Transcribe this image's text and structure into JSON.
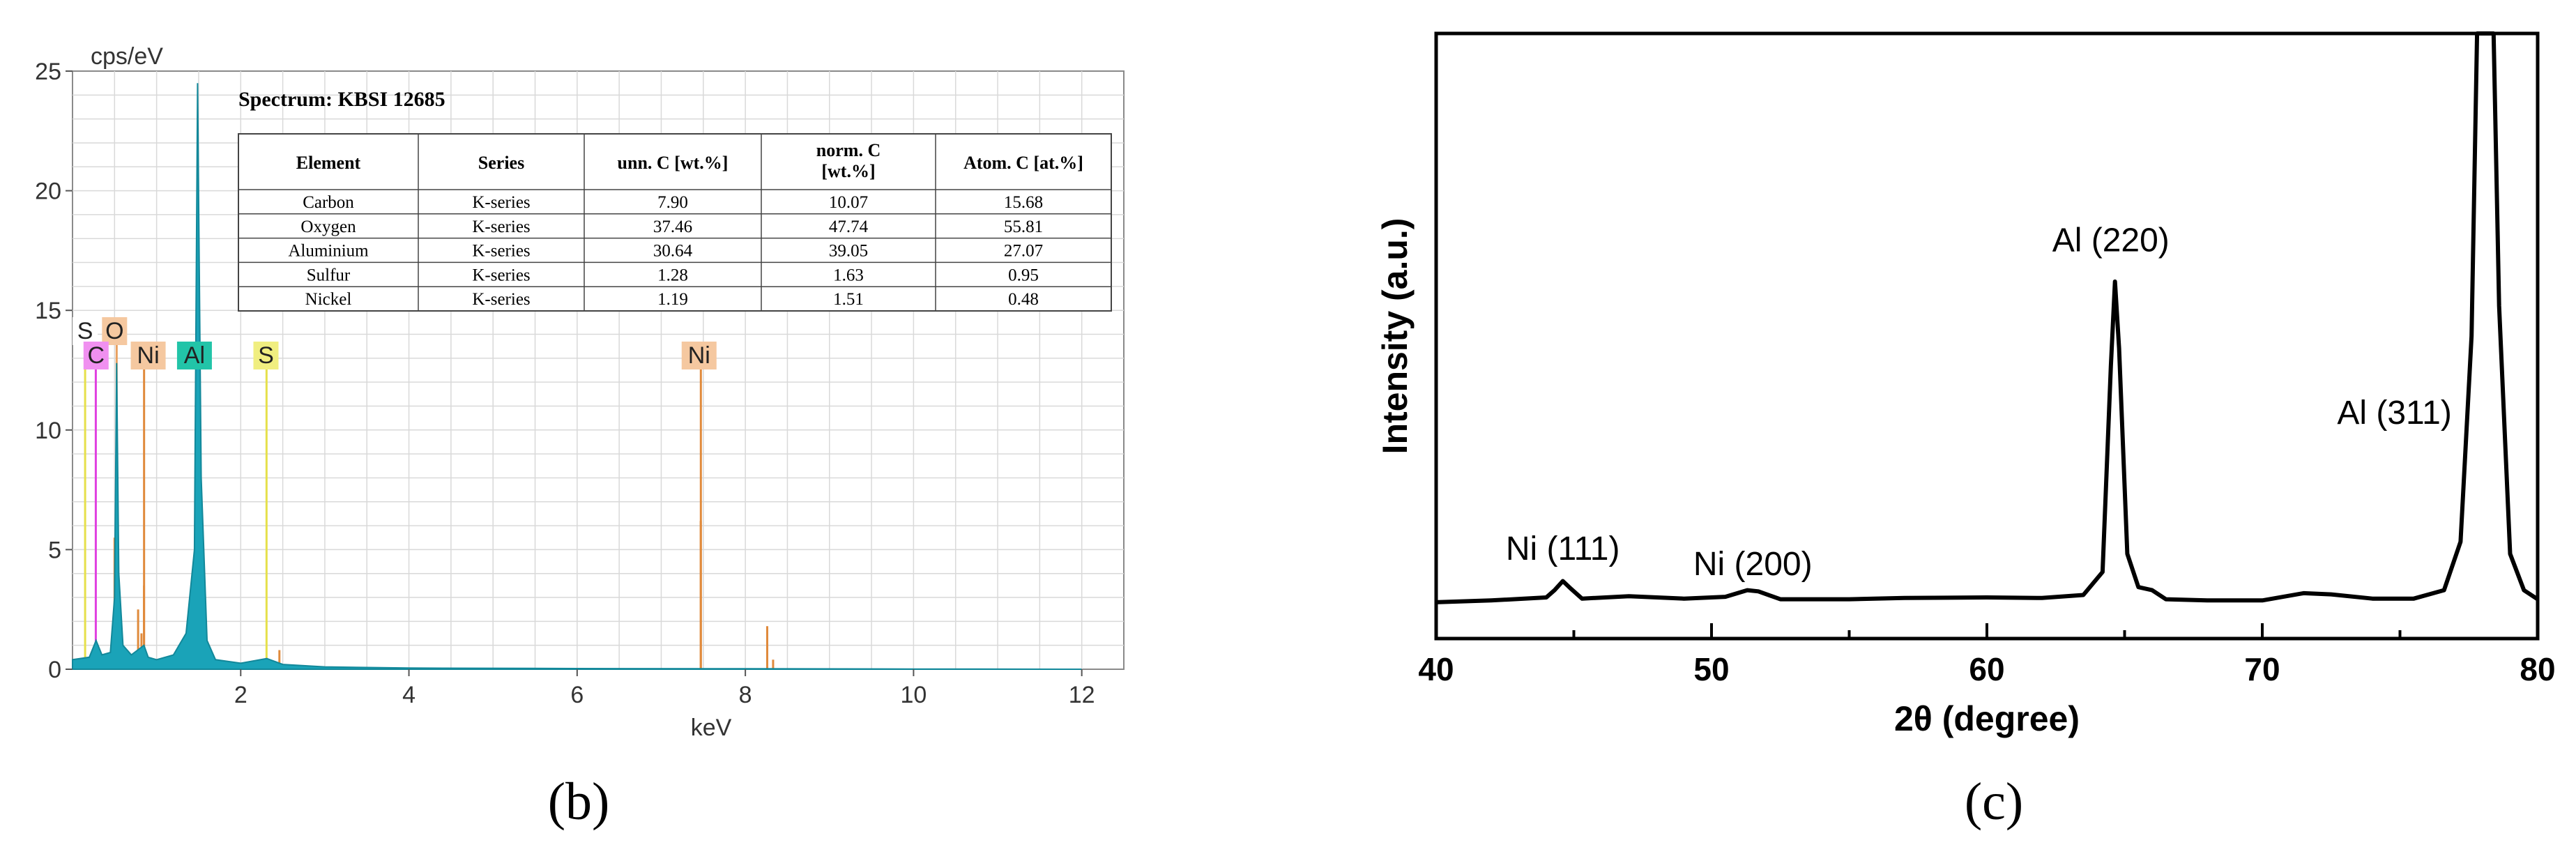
{
  "captions": {
    "left": "(b)",
    "right": "(c)"
  },
  "colors": {
    "spectrum": "#1aa3b8",
    "carbon": "#e040e0",
    "oxygen": "#e8a060",
    "nickel": "#e08a3c",
    "aluminium": "#22c4a8",
    "sulfur": "#e6e04a",
    "grid": "#d9d9d9"
  },
  "chart_data": [
    {
      "type": "area",
      "panel": "(b)",
      "title": "Spectrum: KBSI 12685",
      "xlabel": "keV",
      "ylabel": "cps/eV",
      "xlim": [
        0,
        12.5
      ],
      "ylim": [
        0,
        25
      ],
      "x_ticks": [
        2,
        4,
        6,
        8,
        10,
        12
      ],
      "y_ticks": [
        0,
        5,
        10,
        15,
        20,
        25
      ],
      "grid": true,
      "series": [
        {
          "values": [
            [
              0.0,
              0.4
            ],
            [
              0.2,
              0.5
            ],
            [
              0.28,
              1.2
            ],
            [
              0.35,
              0.6
            ],
            [
              0.45,
              0.7
            ],
            [
              0.5,
              3.0
            ],
            [
              0.525,
              12.8
            ],
            [
              0.55,
              4.0
            ],
            [
              0.6,
              1.0
            ],
            [
              0.7,
              0.6
            ],
            [
              0.85,
              1.0
            ],
            [
              0.9,
              0.5
            ],
            [
              1.0,
              0.4
            ],
            [
              1.2,
              0.6
            ],
            [
              1.35,
              1.5
            ],
            [
              1.45,
              5.0
            ],
            [
              1.487,
              24.5
            ],
            [
              1.53,
              8.0
            ],
            [
              1.6,
              1.2
            ],
            [
              1.7,
              0.4
            ],
            [
              2.0,
              0.25
            ],
            [
              2.31,
              0.45
            ],
            [
              2.5,
              0.2
            ],
            [
              3.0,
              0.1
            ],
            [
              4.0,
              0.05
            ],
            [
              6.0,
              0.03
            ],
            [
              8.0,
              0.02
            ],
            [
              10.0,
              0.01
            ],
            [
              12.0,
              0.0
            ]
          ]
        }
      ],
      "element_lines": [
        {
          "element": "C",
          "energy": 0.277,
          "height": 14.2
        },
        {
          "element": "O",
          "energy": 0.525,
          "height": 14.2
        },
        {
          "element": "S",
          "energy": 0.15,
          "height": 14.2
        },
        {
          "element": "Ni",
          "energy": 0.851,
          "height": 13.2
        },
        {
          "element": "Al",
          "energy": 1.487,
          "height": 13.2
        },
        {
          "element": "S",
          "energy": 2.307,
          "height": 13.2
        },
        {
          "element": "Ni",
          "energy": 7.471,
          "height": 13.2
        }
      ],
      "minor_lines": [
        {
          "energy": 0.5,
          "height": 5.5
        },
        {
          "energy": 0.85,
          "height": 3.5
        },
        {
          "energy": 0.78,
          "height": 2.5
        },
        {
          "energy": 0.82,
          "height": 1.5
        },
        {
          "energy": 2.46,
          "height": 0.8
        },
        {
          "energy": 7.47,
          "height": 6.2
        },
        {
          "energy": 8.26,
          "height": 1.8
        },
        {
          "energy": 8.33,
          "height": 0.4
        }
      ],
      "element_labels": [
        {
          "text": "S",
          "energy": 0.15,
          "row": 1,
          "color": "#ffffff"
        },
        {
          "text": "O",
          "energy": 0.5,
          "row": 1,
          "color": "#f5c8a0"
        },
        {
          "text": "C",
          "energy": 0.28,
          "row": 2,
          "color": "#f090f0"
        },
        {
          "text": "Ni",
          "energy": 0.9,
          "row": 2,
          "color": "#f5c8a0"
        },
        {
          "text": "Al",
          "energy": 1.45,
          "row": 2,
          "color": "#22c4a8"
        },
        {
          "text": "S",
          "energy": 2.3,
          "row": 2,
          "color": "#f0ee80"
        },
        {
          "text": "Ni",
          "energy": 7.45,
          "row": 2,
          "color": "#f5c8a0"
        }
      ],
      "table": {
        "headers": [
          "Element",
          "Series",
          "unn. C [wt.%]",
          "norm. C\n[wt.%]",
          "Atom. C [at.%]"
        ],
        "rows": [
          [
            "Carbon",
            "K-series",
            "7.90",
            "10.07",
            "15.68"
          ],
          [
            "Oxygen",
            "K-series",
            "37.46",
            "47.74",
            "55.81"
          ],
          [
            "Aluminium",
            "K-series",
            "30.64",
            "39.05",
            "27.07"
          ],
          [
            "Sulfur",
            "K-series",
            "1.28",
            "1.63",
            "0.95"
          ],
          [
            "Nickel",
            "K-series",
            "1.19",
            "1.51",
            "0.48"
          ]
        ]
      }
    },
    {
      "type": "line",
      "panel": "(c)",
      "xlabel": "2θ (degree)",
      "ylabel": "Intensity (a.u.)",
      "xlim": [
        40,
        80
      ],
      "x_ticks": [
        40,
        50,
        60,
        70,
        80
      ],
      "y_ticks": [],
      "ylim": [
        0,
        100
      ],
      "series": [
        {
          "values": [
            [
              40,
              6.0
            ],
            [
              42,
              6.3
            ],
            [
              44,
              6.8
            ],
            [
              44.3,
              8.0
            ],
            [
              44.6,
              9.5
            ],
            [
              44.9,
              8.2
            ],
            [
              45.3,
              6.6
            ],
            [
              47,
              7.0
            ],
            [
              49,
              6.6
            ],
            [
              50.5,
              6.9
            ],
            [
              51.3,
              8.0
            ],
            [
              51.7,
              7.8
            ],
            [
              52.5,
              6.5
            ],
            [
              55,
              6.5
            ],
            [
              57,
              6.7
            ],
            [
              60,
              6.8
            ],
            [
              62,
              6.7
            ],
            [
              63.5,
              7.2
            ],
            [
              64.2,
              11.0
            ],
            [
              64.5,
              45.0
            ],
            [
              64.65,
              59.0
            ],
            [
              64.8,
              48.0
            ],
            [
              65.1,
              14.0
            ],
            [
              65.5,
              8.5
            ],
            [
              66.0,
              8.0
            ],
            [
              66.5,
              6.5
            ],
            [
              68,
              6.3
            ],
            [
              70,
              6.3
            ],
            [
              71.5,
              7.5
            ],
            [
              72.5,
              7.3
            ],
            [
              74,
              6.6
            ],
            [
              75.5,
              6.6
            ],
            [
              76.6,
              8.0
            ],
            [
              77.2,
              16.0
            ],
            [
              77.6,
              50.0
            ],
            [
              77.8,
              100.0
            ],
            [
              78.4,
              100.0
            ],
            [
              78.6,
              55.0
            ],
            [
              79.0,
              14.0
            ],
            [
              79.5,
              8.0
            ],
            [
              80,
              6.5
            ]
          ]
        }
      ],
      "annotations": [
        {
          "text": "Ni (111)",
          "x": 44.6,
          "y": 13.0
        },
        {
          "text": "Ni (200)",
          "x": 51.5,
          "y": 10.5
        },
        {
          "text": "Al (220)",
          "x": 64.5,
          "y": 64.0
        },
        {
          "text": "Al (311)",
          "x": 74.8,
          "y": 35.5
        }
      ]
    }
  ]
}
